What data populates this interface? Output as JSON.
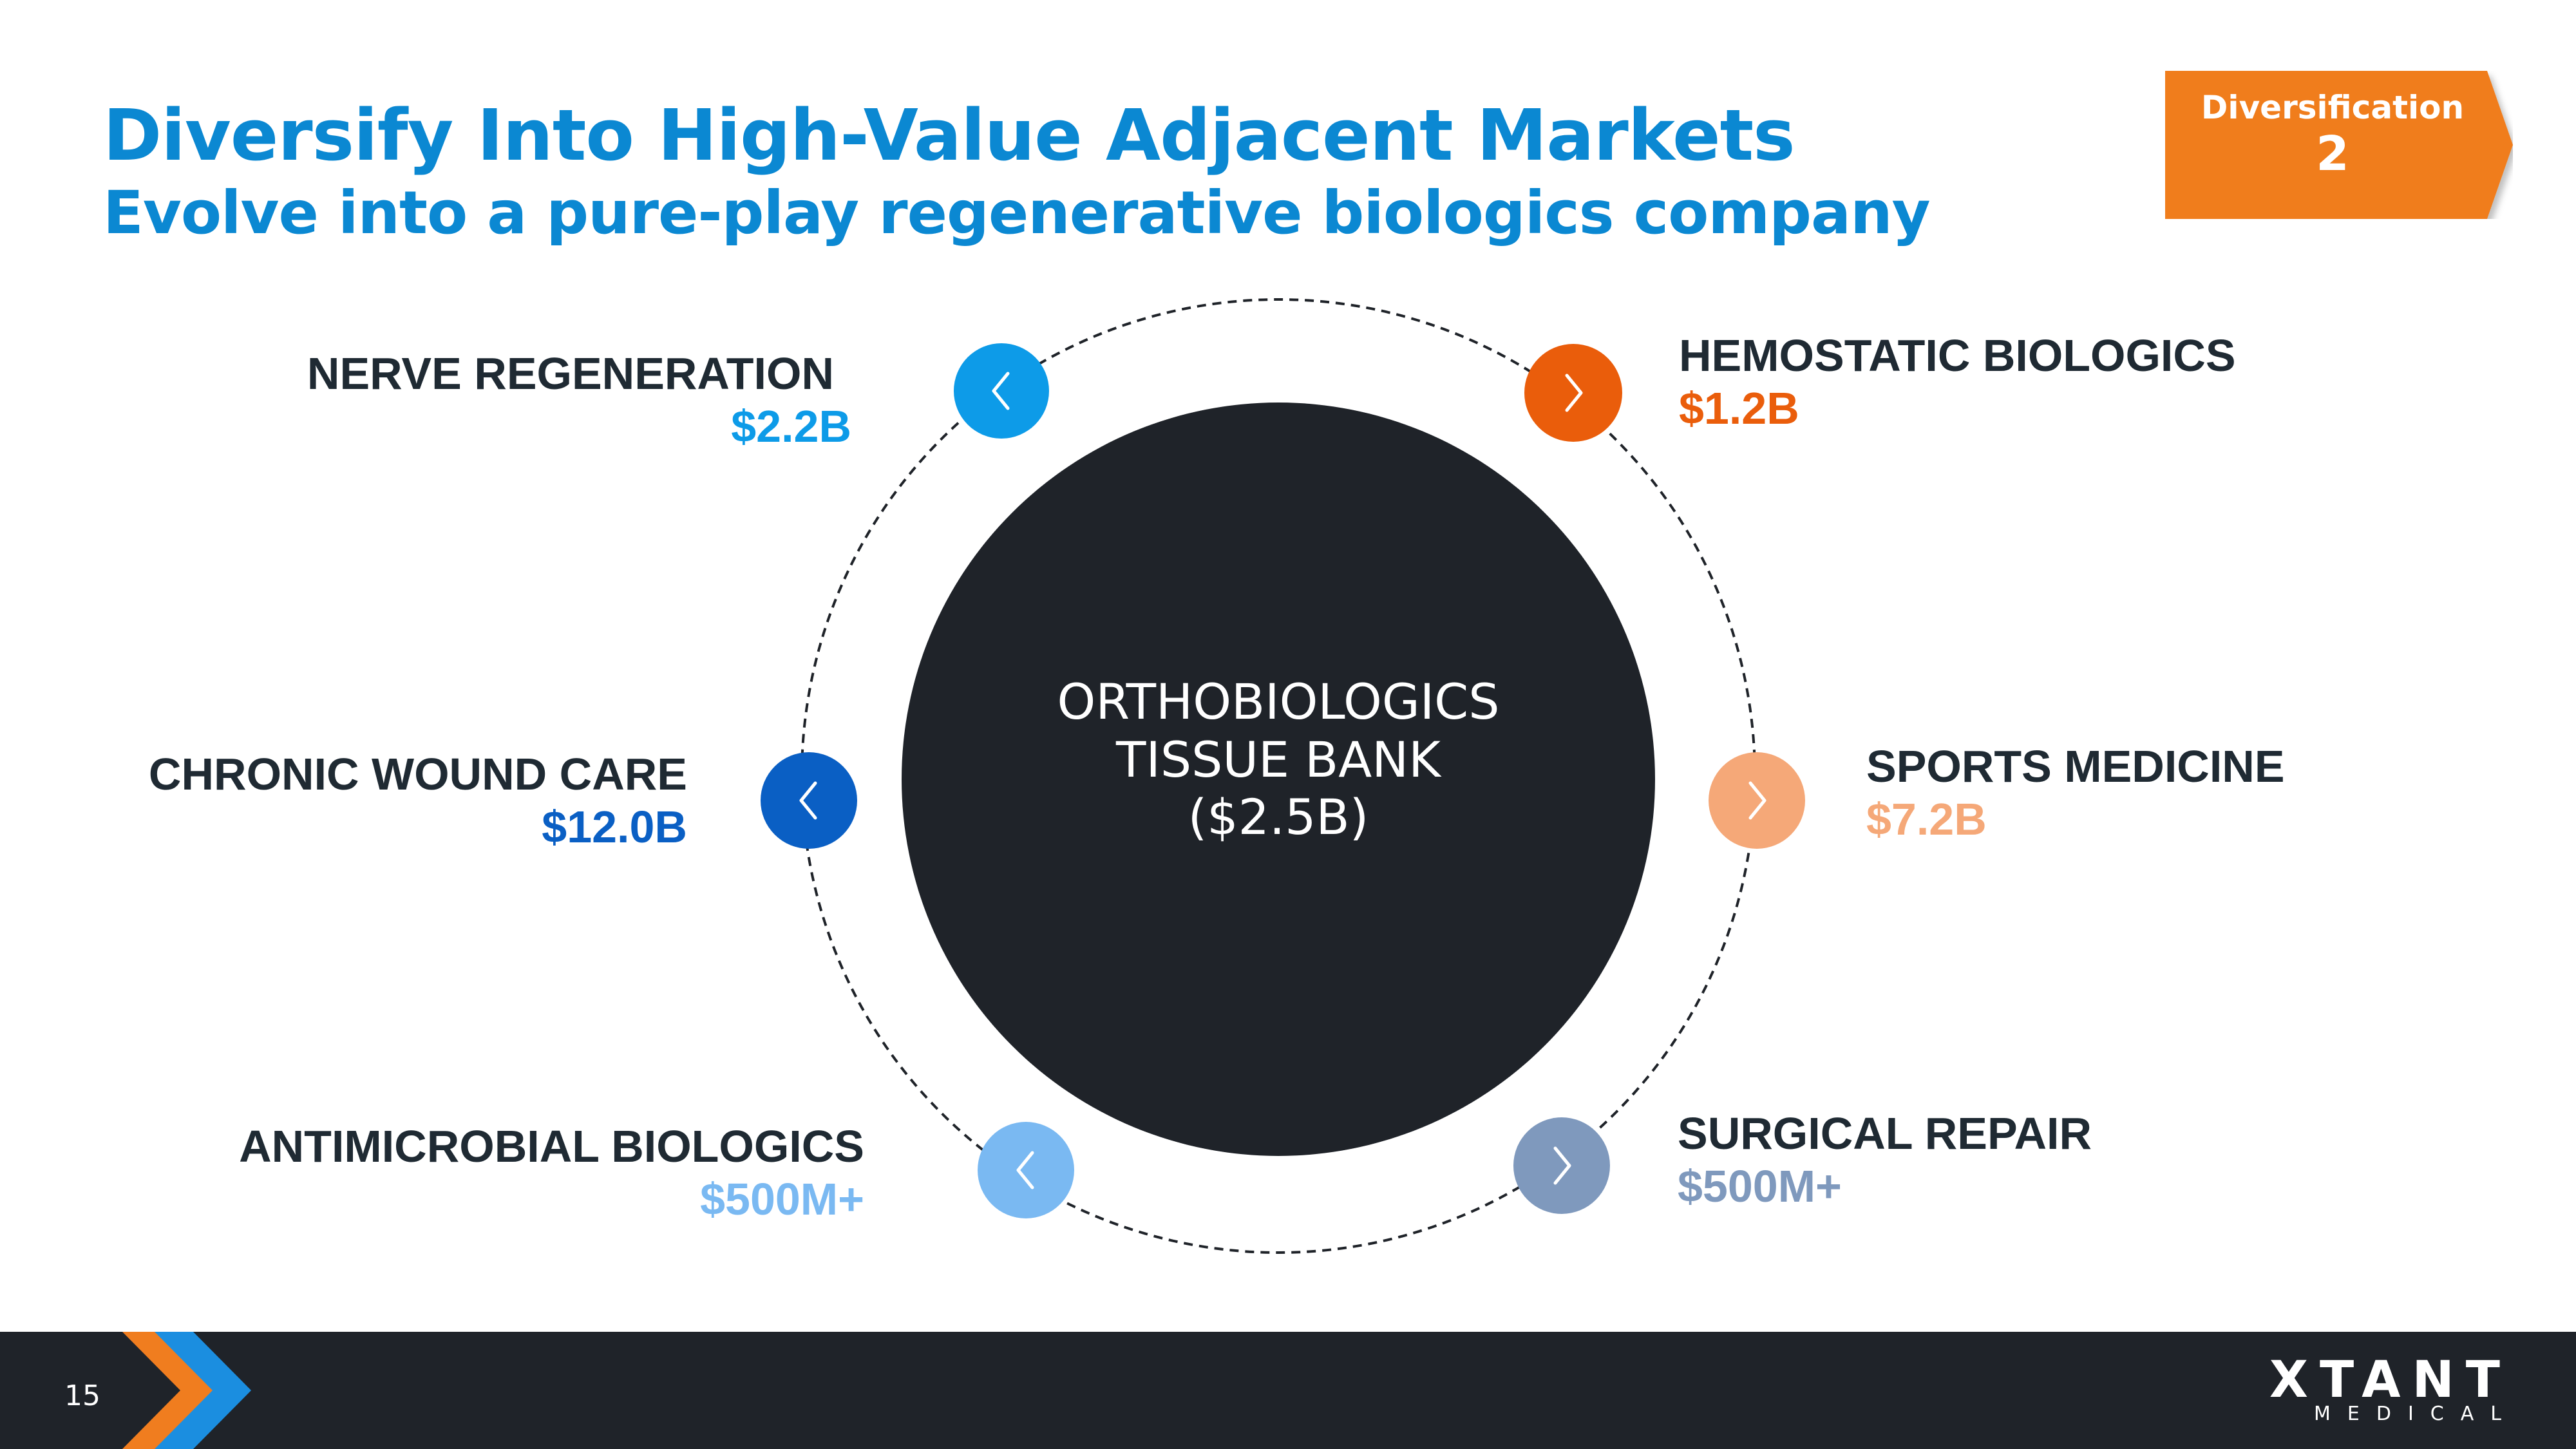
{
  "header": {
    "title": "Diversify Into High-Value Adjacent Markets",
    "subtitle": "Evolve into a pure-play regenerative biologics company"
  },
  "badge": {
    "label": "Diversification",
    "number": "2",
    "color": "#f07d1f"
  },
  "center": {
    "line1": "ORTHOBIOLOGICS",
    "line2": "TISSUE BANK",
    "line3": "($2.5B)",
    "color": "#1f2329"
  },
  "markets": [
    {
      "name": "NERVE REGENERATION",
      "value": "$2.2B",
      "color": "#0d9be8",
      "icon": "chevron-left-icon"
    },
    {
      "name": "HEMOSTATIC BIOLOGICS",
      "value": "$1.2B",
      "color": "#ea5d0b",
      "icon": "chevron-right-icon"
    },
    {
      "name": "CHRONIC WOUND CARE",
      "value": "$12.0B",
      "color": "#0a5fc4",
      "icon": "chevron-left-icon"
    },
    {
      "name": "SPORTS MEDICINE",
      "value": "$7.2B",
      "color": "#f5a878",
      "icon": "chevron-right-icon"
    },
    {
      "name": "ANTIMICROBIAL BIOLOGICS",
      "value": "$500M+",
      "color": "#7ab9f2",
      "icon": "chevron-left-icon"
    },
    {
      "name": "SURGICAL REPAIR",
      "value": "$500M+",
      "color": "#7f99bd",
      "icon": "chevron-right-icon"
    }
  ],
  "footer": {
    "page_number": "15",
    "logo_main": "XTANT",
    "logo_sub": "MEDICAL"
  }
}
